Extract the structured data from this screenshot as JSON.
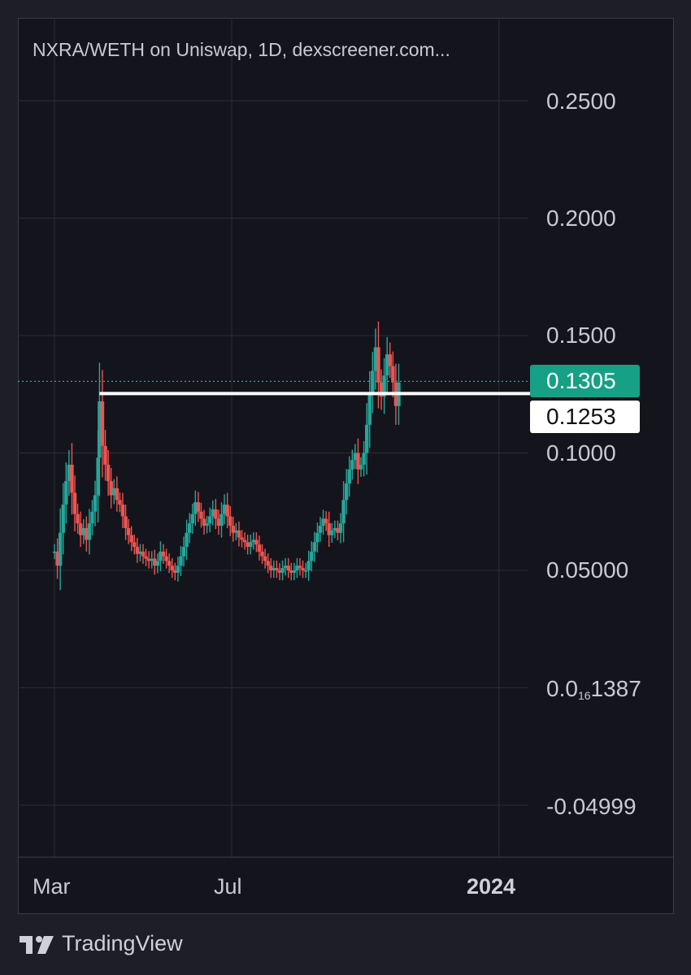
{
  "title": "NXRA/WETH on Uniswap, 1D, dexscreener.com...",
  "brand": "TradingView",
  "colors": {
    "up": "#26a69a",
    "down": "#ef5350",
    "last_price_bg": "#16a085",
    "level_bg": "#ffffff",
    "grid": "#2a2c35",
    "background": "#14151c"
  },
  "y_axis": {
    "labels": [
      {
        "text": "0.2500",
        "value": 0.25
      },
      {
        "text": "0.2000",
        "value": 0.2
      },
      {
        "text": "0.1500",
        "value": 0.15
      },
      {
        "text": "0.1000",
        "value": 0.1
      },
      {
        "text": "0.05000",
        "value": 0.05
      },
      {
        "text_main": "0.0",
        "text_sub": "16",
        "text_tail": "1387",
        "value": 0.0
      },
      {
        "text": "-0.04999",
        "value": -0.05
      }
    ]
  },
  "x_axis": {
    "labels": [
      {
        "text": "Mar",
        "date": "2023-03-01"
      },
      {
        "text": "Jul",
        "date": "2023-07-01"
      },
      {
        "text": "2024",
        "date": "2024-01-01"
      }
    ]
  },
  "last_price": {
    "text": "0.1305",
    "value": 0.1305
  },
  "horizontal_level": {
    "text": "0.1253",
    "value": 0.1253,
    "start_date": "2023-04-01"
  },
  "chart_data": {
    "type": "candlestick",
    "title": "NXRA/WETH on Uniswap, 1D, dexscreener.com...",
    "x_type": "date",
    "ylim": [
      -0.05,
      0.25
    ],
    "grid": true,
    "series": [
      {
        "name": "NXRA/WETH",
        "close": [
          [
            "2023-03-01",
            0.058
          ],
          [
            "2023-03-03",
            0.052
          ],
          [
            "2023-03-05",
            0.066
          ],
          [
            "2023-03-07",
            0.078
          ],
          [
            "2023-03-09",
            0.088
          ],
          [
            "2023-03-11",
            0.095
          ],
          [
            "2023-03-13",
            0.083
          ],
          [
            "2023-03-15",
            0.074
          ],
          [
            "2023-03-17",
            0.07
          ],
          [
            "2023-03-19",
            0.065
          ],
          [
            "2023-03-21",
            0.068
          ],
          [
            "2023-03-23",
            0.063
          ],
          [
            "2023-03-25",
            0.07
          ],
          [
            "2023-03-27",
            0.075
          ],
          [
            "2023-03-29",
            0.082
          ],
          [
            "2023-03-31",
            0.098
          ],
          [
            "2023-04-01",
            0.122
          ],
          [
            "2023-04-03",
            0.103
          ],
          [
            "2023-04-05",
            0.095
          ],
          [
            "2023-04-07",
            0.088
          ],
          [
            "2023-04-09",
            0.082
          ],
          [
            "2023-04-11",
            0.085
          ],
          [
            "2023-04-13",
            0.08
          ],
          [
            "2023-04-15",
            0.078
          ],
          [
            "2023-04-17",
            0.073
          ],
          [
            "2023-04-19",
            0.068
          ],
          [
            "2023-04-21",
            0.065
          ],
          [
            "2023-04-23",
            0.062
          ],
          [
            "2023-04-25",
            0.06
          ],
          [
            "2023-04-27",
            0.057
          ],
          [
            "2023-04-29",
            0.058
          ],
          [
            "2023-05-01",
            0.056
          ],
          [
            "2023-05-03",
            0.055
          ],
          [
            "2023-05-05",
            0.054
          ],
          [
            "2023-05-07",
            0.055
          ],
          [
            "2023-05-09",
            0.052
          ],
          [
            "2023-05-11",
            0.054
          ],
          [
            "2023-05-13",
            0.058
          ],
          [
            "2023-05-15",
            0.056
          ],
          [
            "2023-05-17",
            0.054
          ],
          [
            "2023-05-19",
            0.052
          ],
          [
            "2023-05-21",
            0.05
          ],
          [
            "2023-05-23",
            0.049
          ],
          [
            "2023-05-25",
            0.052
          ],
          [
            "2023-05-27",
            0.056
          ],
          [
            "2023-05-29",
            0.06
          ],
          [
            "2023-05-31",
            0.066
          ],
          [
            "2023-06-02",
            0.07
          ],
          [
            "2023-06-04",
            0.074
          ],
          [
            "2023-06-06",
            0.079
          ],
          [
            "2023-06-08",
            0.075
          ],
          [
            "2023-06-10",
            0.072
          ],
          [
            "2023-06-12",
            0.069
          ],
          [
            "2023-06-14",
            0.07
          ],
          [
            "2023-06-16",
            0.073
          ],
          [
            "2023-06-18",
            0.076
          ],
          [
            "2023-06-20",
            0.072
          ],
          [
            "2023-06-22",
            0.069
          ],
          [
            "2023-06-24",
            0.074
          ],
          [
            "2023-06-26",
            0.078
          ],
          [
            "2023-06-28",
            0.073
          ],
          [
            "2023-06-30",
            0.069
          ],
          [
            "2023-07-02",
            0.066
          ],
          [
            "2023-07-04",
            0.067
          ],
          [
            "2023-07-06",
            0.064
          ],
          [
            "2023-07-08",
            0.063
          ],
          [
            "2023-07-10",
            0.062
          ],
          [
            "2023-07-12",
            0.06
          ],
          [
            "2023-07-14",
            0.062
          ],
          [
            "2023-07-16",
            0.063
          ],
          [
            "2023-07-18",
            0.061
          ],
          [
            "2023-07-20",
            0.058
          ],
          [
            "2023-07-22",
            0.056
          ],
          [
            "2023-07-24",
            0.054
          ],
          [
            "2023-07-26",
            0.052
          ],
          [
            "2023-07-28",
            0.05
          ],
          [
            "2023-07-30",
            0.051
          ],
          [
            "2023-08-01",
            0.05
          ],
          [
            "2023-08-03",
            0.049
          ],
          [
            "2023-08-05",
            0.051
          ],
          [
            "2023-08-07",
            0.052
          ],
          [
            "2023-08-09",
            0.05
          ],
          [
            "2023-08-11",
            0.049
          ],
          [
            "2023-08-13",
            0.05
          ],
          [
            "2023-08-15",
            0.052
          ],
          [
            "2023-08-17",
            0.051
          ],
          [
            "2023-08-19",
            0.05
          ],
          [
            "2023-08-21",
            0.05
          ],
          [
            "2023-08-23",
            0.054
          ],
          [
            "2023-08-25",
            0.058
          ],
          [
            "2023-08-27",
            0.062
          ],
          [
            "2023-08-29",
            0.066
          ],
          [
            "2023-08-31",
            0.069
          ],
          [
            "2023-09-02",
            0.072
          ],
          [
            "2023-09-04",
            0.07
          ],
          [
            "2023-09-06",
            0.065
          ],
          [
            "2023-09-08",
            0.067
          ],
          [
            "2023-09-10",
            0.068
          ],
          [
            "2023-09-12",
            0.066
          ],
          [
            "2023-09-14",
            0.07
          ],
          [
            "2023-09-16",
            0.08
          ],
          [
            "2023-09-18",
            0.087
          ],
          [
            "2023-09-20",
            0.093
          ],
          [
            "2023-09-22",
            0.097
          ],
          [
            "2023-09-24",
            0.1
          ],
          [
            "2023-09-26",
            0.093
          ],
          [
            "2023-09-28",
            0.095
          ],
          [
            "2023-09-30",
            0.1
          ],
          [
            "2023-10-02",
            0.112
          ],
          [
            "2023-10-04",
            0.125
          ],
          [
            "2023-10-06",
            0.135
          ],
          [
            "2023-10-08",
            0.145
          ],
          [
            "2023-10-10",
            0.13
          ],
          [
            "2023-10-12",
            0.124
          ],
          [
            "2023-10-14",
            0.133
          ],
          [
            "2023-10-16",
            0.142
          ],
          [
            "2023-10-18",
            0.137
          ],
          [
            "2023-10-20",
            0.13
          ],
          [
            "2023-10-22",
            0.12
          ],
          [
            "2023-10-24",
            0.13
          ]
        ]
      }
    ]
  }
}
